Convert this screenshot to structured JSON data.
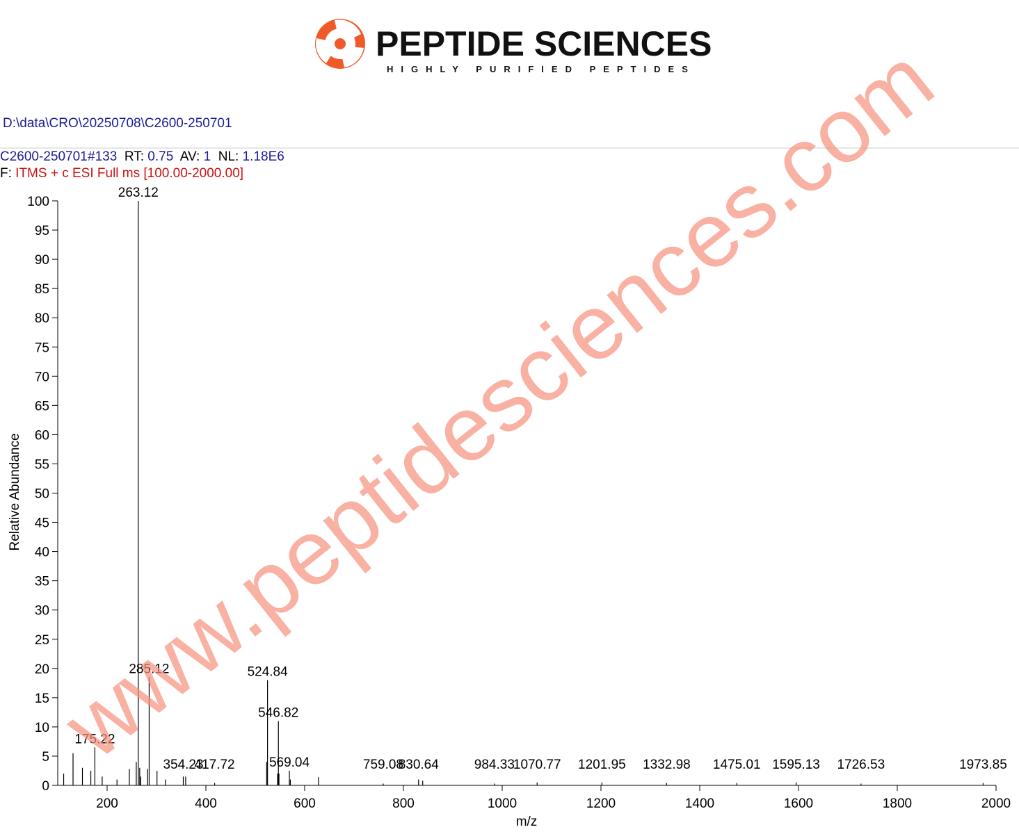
{
  "header": {
    "brand": "PEPTIDE SCIENCES",
    "tagline": "HIGHLY PURIFIED PEPTIDES",
    "file_path": "D:\\data\\CRO\\20250708\\C2600-250701",
    "scan": {
      "sample": "C2600-250701",
      "scan_number": "#133",
      "rt_label": "RT:",
      "rt": "0.75",
      "av_label": "AV:",
      "av": "1",
      "nl_label": "NL:",
      "nl": "1.18E6"
    },
    "filter_label": "F:",
    "filter": "ITMS + c ESI Full ms [100.00-2000.00]",
    "watermark": "www.peptidesciences.com"
  },
  "chart_data": {
    "type": "stick",
    "x_label": "m/z",
    "y_label": "Relative Abundance",
    "x": [
      175.22,
      263.12,
      285.12,
      354.23,
      417.72,
      524.84,
      546.82,
      569.04,
      759.08,
      830.64,
      984.33,
      1070.77,
      1201.95,
      1332.98,
      1475.01,
      1595.13,
      1726.53,
      1973.85
    ],
    "values": [
      6.5,
      100,
      18.5,
      1.5,
      0.4,
      18,
      11,
      2.5,
      0.3,
      1,
      0.3,
      0.5,
      0.5,
      0.4,
      0.4,
      0.5,
      0.3,
      0.4
    ],
    "minor_x": [
      112,
      131,
      150,
      167,
      190,
      220,
      245,
      259,
      266,
      268,
      282,
      301,
      318,
      359,
      523,
      545,
      548,
      571,
      628,
      839
    ],
    "minor_values": [
      2,
      5.5,
      3,
      2.5,
      1.5,
      1,
      2.8,
      4,
      3,
      1.5,
      2.8,
      2.5,
      1,
      1.5,
      4,
      2,
      2,
      1,
      1.4,
      0.8
    ],
    "color": "#000000",
    "xlim": [
      100,
      2000
    ],
    "xticks": [
      200,
      400,
      600,
      800,
      1000,
      1200,
      1400,
      1600,
      1800,
      2000
    ],
    "ylim": [
      0,
      100
    ],
    "yticks": [
      0,
      5,
      10,
      15,
      20,
      25,
      30,
      35,
      40,
      45,
      50,
      55,
      60,
      65,
      70,
      75,
      80,
      85,
      90,
      95,
      100
    ]
  }
}
